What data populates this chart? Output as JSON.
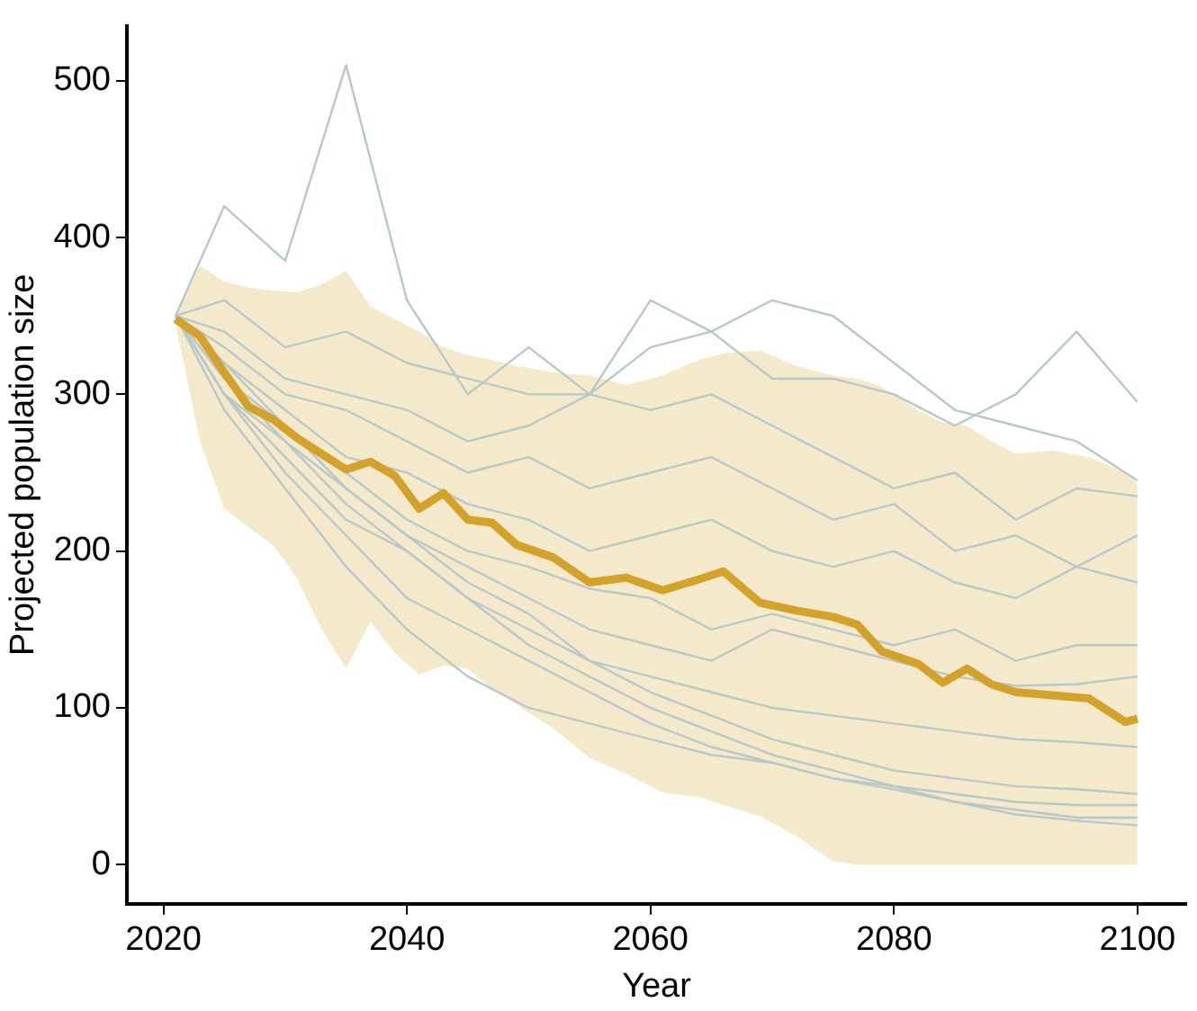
{
  "chart_data": {
    "type": "line",
    "xlabel": "Year",
    "ylabel": "Projected population size",
    "xlim": [
      2017,
      2104
    ],
    "ylim": [
      -25,
      535
    ],
    "xticks": [
      2020,
      2040,
      2060,
      2080,
      2100
    ],
    "yticks": [
      0,
      100,
      200,
      300,
      400,
      500
    ],
    "marker": "none",
    "series": [
      {
        "color": "#b8c8c8",
        "x": [
          2021,
          2025,
          2030,
          2035,
          2040,
          2045,
          2050,
          2055,
          2060,
          2065,
          2070,
          2075,
          2080,
          2085,
          2090,
          2095,
          2100
        ],
        "values": [
          350,
          420,
          385,
          510,
          360,
          300,
          330,
          300,
          360,
          340,
          310,
          310,
          300,
          280,
          300,
          340,
          295
        ]
      },
      {
        "color": "#b8c8c8",
        "x": [
          2021,
          2025,
          2030,
          2035,
          2040,
          2045,
          2050,
          2055,
          2060,
          2065,
          2070,
          2075,
          2080,
          2085,
          2090,
          2095,
          2100
        ],
        "values": [
          350,
          360,
          330,
          340,
          320,
          310,
          300,
          300,
          330,
          340,
          360,
          350,
          320,
          290,
          280,
          270,
          245
        ]
      },
      {
        "color": "#b8c8c8",
        "x": [
          2021,
          2025,
          2030,
          2035,
          2040,
          2045,
          2050,
          2055,
          2060,
          2065,
          2070,
          2075,
          2080,
          2085,
          2090,
          2095,
          2100
        ],
        "values": [
          350,
          340,
          310,
          300,
          290,
          270,
          280,
          300,
          290,
          300,
          280,
          260,
          240,
          250,
          220,
          240,
          235
        ]
      },
      {
        "color": "#b8c8c8",
        "x": [
          2021,
          2025,
          2030,
          2035,
          2040,
          2045,
          2050,
          2055,
          2060,
          2065,
          2070,
          2075,
          2080,
          2085,
          2090,
          2095,
          2100
        ],
        "values": [
          350,
          330,
          300,
          290,
          270,
          250,
          260,
          240,
          250,
          260,
          240,
          220,
          230,
          200,
          210,
          190,
          210
        ]
      },
      {
        "color": "#b8c8c8",
        "x": [
          2021,
          2025,
          2030,
          2035,
          2040,
          2045,
          2050,
          2055,
          2060,
          2065,
          2070,
          2075,
          2080,
          2085,
          2090,
          2095,
          2100
        ],
        "values": [
          350,
          320,
          290,
          260,
          250,
          230,
          220,
          200,
          210,
          220,
          200,
          190,
          200,
          180,
          170,
          190,
          180
        ]
      },
      {
        "color": "#b8c8c8",
        "x": [
          2021,
          2025,
          2030,
          2035,
          2040,
          2045,
          2050,
          2055,
          2060,
          2065,
          2070,
          2075,
          2080,
          2085,
          2090,
          2095,
          2100
        ],
        "values": [
          350,
          310,
          280,
          250,
          220,
          200,
          190,
          176,
          170,
          150,
          160,
          150,
          140,
          150,
          130,
          140,
          140
        ]
      },
      {
        "color": "#b8c8c8",
        "x": [
          2021,
          2025,
          2030,
          2035,
          2040,
          2045,
          2050,
          2055,
          2060,
          2065,
          2070,
          2075,
          2080,
          2085,
          2090,
          2095,
          2100
        ],
        "values": [
          350,
          300,
          270,
          240,
          210,
          190,
          170,
          150,
          140,
          130,
          150,
          140,
          130,
          120,
          114,
          115,
          120
        ]
      },
      {
        "color": "#b8c8c8",
        "x": [
          2021,
          2025,
          2030,
          2035,
          2040,
          2045,
          2050,
          2055,
          2060,
          2065,
          2070,
          2075,
          2080,
          2085,
          2090,
          2095,
          2100
        ],
        "values": [
          350,
          300,
          260,
          220,
          200,
          170,
          150,
          130,
          120,
          110,
          100,
          95,
          90,
          85,
          80,
          78,
          75
        ]
      },
      {
        "color": "#b8c8c8",
        "x": [
          2021,
          2025,
          2030,
          2035,
          2040,
          2045,
          2050,
          2055,
          2060,
          2065,
          2070,
          2075,
          2080,
          2085,
          2090,
          2095,
          2100
        ],
        "values": [
          350,
          290,
          240,
          190,
          150,
          120,
          100,
          90,
          80,
          70,
          65,
          55,
          50,
          45,
          40,
          38,
          38
        ]
      },
      {
        "color": "#b8c8c8",
        "x": [
          2021,
          2025,
          2030,
          2035,
          2040,
          2045,
          2050,
          2055,
          2060,
          2065,
          2070,
          2075,
          2080,
          2085,
          2090,
          2095,
          2100
        ],
        "values": [
          350,
          300,
          250,
          210,
          170,
          150,
          130,
          110,
          90,
          75,
          65,
          55,
          48,
          40,
          35,
          30,
          30
        ]
      },
      {
        "color": "#b8c8c8",
        "x": [
          2021,
          2025,
          2030,
          2035,
          2040,
          2045,
          2050,
          2055,
          2060,
          2065,
          2070,
          2075,
          2080,
          2085,
          2090,
          2095,
          2100
        ],
        "values": [
          350,
          310,
          270,
          230,
          200,
          170,
          140,
          120,
          100,
          85,
          70,
          60,
          50,
          40,
          32,
          28,
          25
        ]
      },
      {
        "color": "#b8c8c8",
        "x": [
          2021,
          2025,
          2030,
          2035,
          2040,
          2045,
          2050,
          2055,
          2060,
          2065,
          2070,
          2075,
          2080,
          2085,
          2090,
          2095,
          2100
        ],
        "values": [
          350,
          320,
          280,
          240,
          210,
          180,
          160,
          130,
          110,
          95,
          80,
          70,
          60,
          55,
          50,
          48,
          45
        ]
      },
      {
        "color": "#d4a12a",
        "x": [
          2021,
          2023,
          2025,
          2027,
          2029,
          2031,
          2033,
          2035,
          2037,
          2039,
          2041,
          2043,
          2045,
          2047,
          2049,
          2052,
          2055,
          2058,
          2061,
          2064,
          2066,
          2069,
          2072,
          2075,
          2077,
          2079,
          2082,
          2084,
          2086,
          2088,
          2090,
          2093,
          2096,
          2099,
          2100
        ],
        "values": [
          348,
          337,
          314,
          292,
          284,
          272,
          262,
          252,
          257,
          248,
          227,
          237,
          220,
          218,
          204,
          196,
          180,
          183,
          175,
          182,
          187,
          167,
          162,
          158,
          153,
          136,
          128,
          116,
          125,
          115,
          110,
          108,
          106,
          91,
          93
        ],
        "upper": [
          350,
          382,
          372,
          368,
          366,
          365,
          370,
          379,
          356,
          348,
          340,
          330,
          325,
          322,
          318,
          314,
          312,
          306,
          312,
          322,
          326,
          328,
          318,
          312,
          310,
          305,
          290,
          282,
          280,
          270,
          262,
          264,
          260,
          250,
          243
        ],
        "lower": [
          345,
          270,
          227,
          215,
          204,
          182,
          150,
          125,
          155,
          135,
          121,
          127,
          125,
          112,
          102,
          87,
          68,
          58,
          46,
          43,
          38,
          31,
          18,
          2,
          0,
          0,
          0,
          0,
          0,
          0,
          0,
          0,
          0,
          0,
          0
        ]
      }
    ]
  }
}
